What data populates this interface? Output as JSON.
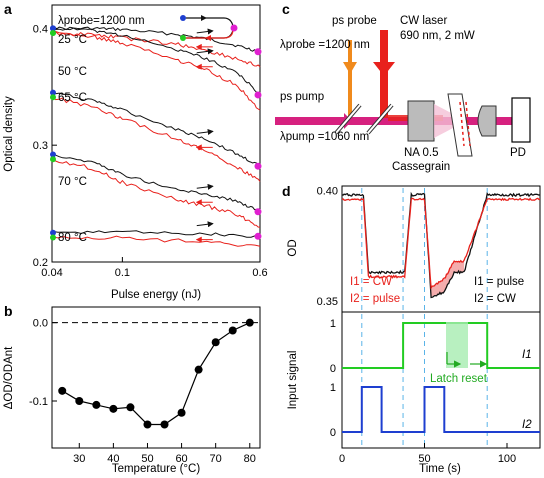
{
  "panels": {
    "a": "a",
    "b": "b",
    "c": "c",
    "d": "d"
  },
  "colors": {
    "black": "#111111",
    "red": "#e8211c",
    "green": "#22cc22",
    "blue": "#1e3fd0",
    "magenta": "#e020d0",
    "orange": "#f08a1c",
    "pink": "#d6217f",
    "cyan_dash": "#5ab4e8",
    "shade": "#f3a4a4",
    "green_shade": "#a6ecb0"
  },
  "a": {
    "probe_label": "λprobe=1200 nm",
    "temps": [
      "25 °C",
      "50 °C",
      "65 °C",
      "70 °C",
      "80 °C"
    ],
    "xlabel": "Pulse energy (nJ)",
    "ylabel": "Optical density",
    "xticks": [
      "0.04",
      "0.1",
      "0.6"
    ],
    "yticks": [
      "0.2",
      "0.3",
      "0.4"
    ]
  },
  "b": {
    "xlabel": "Temperature (°C)",
    "ylabel": "ΔOD/ODAnt",
    "xticks": [
      "30",
      "40",
      "50",
      "60",
      "70",
      "80"
    ],
    "yticks": [
      "-0.1",
      "0.0"
    ]
  },
  "c": {
    "ps_probe": "ps probe",
    "probe_wl": "λprobe =1200 nm",
    "cw_laser": "CW laser",
    "cw_spec": "690 nm, 2 mW",
    "ps_pump": "ps pump",
    "pump_wl": "λpump =1060 nm",
    "na": "NA 0.5",
    "cassegrain": "Cassegrain",
    "pd": "PD"
  },
  "d": {
    "od_label": "OD",
    "input_label": "Input signal",
    "xlabel": "Time (s)",
    "od_yticks": [
      "0.40",
      "0.35"
    ],
    "in_yticks_i1": [
      "1",
      "0"
    ],
    "in_yticks_i2": [
      "1",
      "0"
    ],
    "xticks": [
      "0",
      "50",
      "100"
    ],
    "legend_left": [
      "I1 = CW",
      "I2 = pulse"
    ],
    "legend_right": [
      "I1 = pulse",
      "I2 = CW"
    ],
    "latch_reset": "Latch reset",
    "i1": "I1",
    "i2": "I2"
  },
  "chart_data": [
    {
      "panel": "a",
      "type": "line",
      "x_scale": "log",
      "xlim": [
        0.04,
        0.6
      ],
      "ylim": [
        0.2,
        0.42
      ],
      "series": [
        {
          "temp": "25 °C",
          "x": [
            0.04,
            0.07,
            0.1,
            0.2,
            0.3,
            0.45,
            0.6
          ],
          "y": [
            0.4,
            0.4,
            0.399,
            0.395,
            0.391,
            0.385,
            0.38
          ]
        },
        {
          "temp": "50 °C",
          "x": [
            0.04,
            0.07,
            0.1,
            0.2,
            0.3,
            0.45,
            0.6
          ],
          "y": [
            0.4,
            0.398,
            0.394,
            0.382,
            0.374,
            0.362,
            0.343
          ]
        },
        {
          "temp": "65 °C",
          "x": [
            0.04,
            0.07,
            0.1,
            0.2,
            0.3,
            0.45,
            0.6
          ],
          "y": [
            0.345,
            0.338,
            0.33,
            0.314,
            0.305,
            0.292,
            0.282
          ]
        },
        {
          "temp": "70 °C",
          "x": [
            0.04,
            0.07,
            0.1,
            0.2,
            0.3,
            0.45,
            0.6
          ],
          "y": [
            0.292,
            0.285,
            0.275,
            0.262,
            0.258,
            0.252,
            0.243
          ]
        },
        {
          "temp": "80 °C",
          "x": [
            0.04,
            0.1,
            0.3,
            0.6
          ],
          "y": [
            0.225,
            0.226,
            0.224,
            0.222
          ]
        }
      ]
    },
    {
      "panel": "b",
      "type": "line",
      "x": [
        25,
        30,
        35,
        40,
        45,
        50,
        55,
        60,
        65,
        70,
        75,
        80
      ],
      "y": [
        -0.087,
        -0.1,
        -0.105,
        -0.11,
        -0.108,
        -0.13,
        -0.13,
        -0.115,
        -0.06,
        -0.025,
        -0.01,
        0.0
      ],
      "xlim": [
        22,
        83
      ],
      "ylim": [
        -0.16,
        0.02
      ]
    },
    {
      "panel": "d",
      "type": "line",
      "xlim": [
        0,
        120
      ],
      "od_ylim": [
        0.345,
        0.402
      ],
      "od_black": {
        "x": [
          0,
          13,
          16,
          38,
          42,
          50,
          54,
          62,
          68,
          74,
          88,
          92,
          120
        ],
        "y": [
          0.398,
          0.398,
          0.363,
          0.363,
          0.398,
          0.398,
          0.352,
          0.354,
          0.363,
          0.363,
          0.398,
          0.398,
          0.398
        ]
      },
      "od_red": {
        "x": [
          0,
          13,
          16,
          38,
          42,
          50,
          54,
          62,
          68,
          74,
          88,
          92,
          120
        ],
        "y": [
          0.396,
          0.396,
          0.361,
          0.361,
          0.396,
          0.396,
          0.356,
          0.36,
          0.368,
          0.368,
          0.396,
          0.396,
          0.396
        ]
      },
      "i1": {
        "x": [
          0,
          37,
          37,
          88,
          88,
          120
        ],
        "y": [
          0,
          0,
          1,
          1,
          0,
          0
        ]
      },
      "i2": {
        "x": [
          0,
          12,
          12,
          24,
          24,
          50,
          50,
          62,
          62,
          120
        ],
        "y": [
          0,
          0,
          1,
          1,
          0,
          0,
          1,
          1,
          0,
          0
        ]
      },
      "dashed_times": [
        12,
        37,
        50,
        88
      ]
    }
  ]
}
